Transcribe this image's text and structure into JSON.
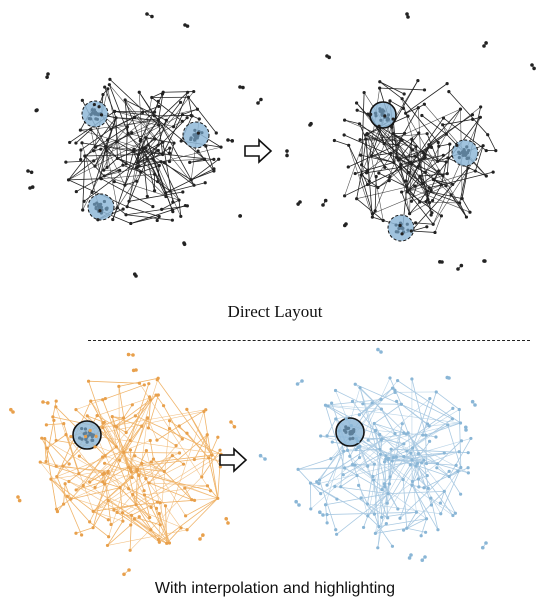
{
  "captions": {
    "top": "Direct Layout",
    "bottom": "With interpolation and highlighting"
  },
  "panels": [
    {
      "id": "direct-before",
      "node_color": "#222222",
      "edge_color": "#222222",
      "highlight_fill": "#8fb8d8",
      "highlight_count": 3
    },
    {
      "id": "direct-after",
      "node_color": "#222222",
      "edge_color": "#222222",
      "highlight_fill": "#8fb8d8",
      "highlight_count": 3
    },
    {
      "id": "interp-before",
      "node_color": "#e8a04c",
      "edge_color": "#f0b46a",
      "highlight_fill": "#8fb8d8",
      "highlight_count": 1
    },
    {
      "id": "interp-after",
      "node_color": "#8ab6d6",
      "edge_color": "#a9c9e2",
      "highlight_fill": "#8fb8d8",
      "highlight_count": 1
    }
  ],
  "icons": [
    "right-arrow-icon",
    "right-arrow-icon"
  ]
}
